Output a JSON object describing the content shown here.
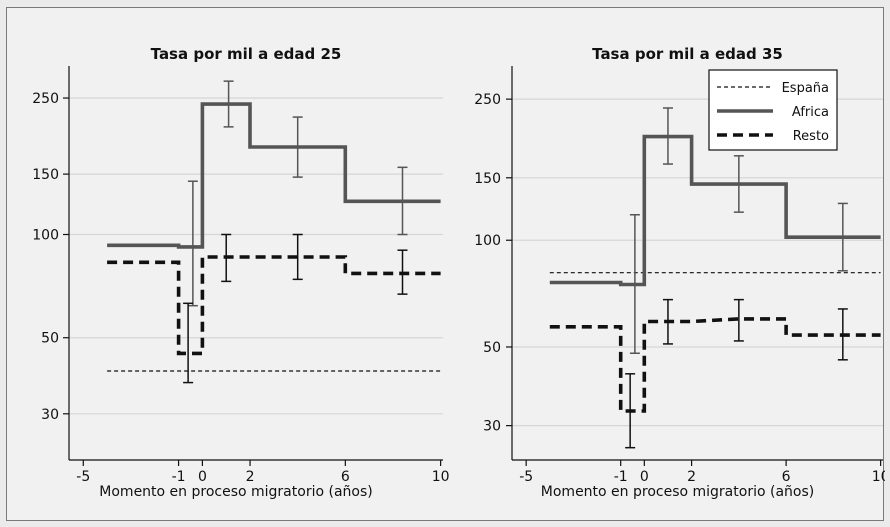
{
  "chart_data": [
    {
      "type": "line",
      "title": "Tasa por mil a edad 25",
      "xlabel": "Momento en proceso migratorio (años)",
      "ylabel": "",
      "y_scale": "log",
      "ylim": [
        22,
        310
      ],
      "xlim": [
        -5.6,
        10.1
      ],
      "x_ticks": [
        -5,
        -1,
        0,
        2,
        6,
        10
      ],
      "y_ticks": [
        30,
        50,
        100,
        150,
        250
      ],
      "grid": true,
      "legend": null,
      "series": [
        {
          "name": "España",
          "style": "dotted",
          "step": [
            [
              -4,
              40
            ],
            [
              10,
              40
            ]
          ],
          "errors": []
        },
        {
          "name": "Africa",
          "style": "solid",
          "step": [
            [
              -4,
              93
            ],
            [
              -1,
              93
            ],
            [
              -1,
              92
            ],
            [
              0,
              92
            ],
            [
              0,
              240
            ],
            [
              2,
              240
            ],
            [
              2,
              180
            ],
            [
              6,
              180
            ],
            [
              6,
              125
            ],
            [
              10,
              125
            ]
          ],
          "errors": [
            {
              "x": -0.4,
              "y": 92,
              "lo": 62,
              "hi": 143
            },
            {
              "x": 1.1,
              "y": 240,
              "lo": 206,
              "hi": 280
            },
            {
              "x": 4,
              "y": 180,
              "lo": 147,
              "hi": 220
            },
            {
              "x": 8.4,
              "y": 125,
              "lo": 100,
              "hi": 157
            }
          ]
        },
        {
          "name": "Resto",
          "style": "dashed",
          "step": [
            [
              -4,
              83
            ],
            [
              -1,
              83
            ],
            [
              -1,
              45
            ],
            [
              0,
              45
            ],
            [
              0,
              86
            ],
            [
              2,
              86
            ],
            [
              6,
              86
            ],
            [
              6,
              77
            ],
            [
              10,
              77
            ]
          ],
          "errors": [
            {
              "x": -0.6,
              "y": 45,
              "lo": 37,
              "hi": 63
            },
            {
              "x": 1,
              "y": 86,
              "lo": 73,
              "hi": 100
            },
            {
              "x": 4,
              "y": 86,
              "lo": 74,
              "hi": 100
            },
            {
              "x": 8.4,
              "y": 77,
              "lo": 67,
              "hi": 90
            }
          ]
        }
      ]
    },
    {
      "type": "line",
      "title": "Tasa por mil a edad 35",
      "xlabel": "Momento en proceso migratorio (años)",
      "ylabel": "",
      "y_scale": "log",
      "ylim": [
        24,
        310
      ],
      "xlim": [
        -5.6,
        10.1
      ],
      "x_ticks": [
        -5,
        -1,
        0,
        2,
        6,
        10
      ],
      "y_ticks": [
        30,
        50,
        100,
        150,
        250
      ],
      "grid": true,
      "legend": "top-right",
      "series": [
        {
          "name": "España",
          "style": "dotted",
          "step": [
            [
              -4,
              81
            ],
            [
              10,
              81
            ]
          ],
          "errors": []
        },
        {
          "name": "Africa",
          "style": "solid",
          "step": [
            [
              -4,
              76
            ],
            [
              -1,
              76
            ],
            [
              -1,
              75
            ],
            [
              0,
              75
            ],
            [
              0,
              196
            ],
            [
              2,
              196
            ],
            [
              2,
              144
            ],
            [
              6,
              144
            ],
            [
              6,
              102
            ],
            [
              10,
              102
            ]
          ],
          "errors": [
            {
              "x": -0.4,
              "y": 75,
              "lo": 48,
              "hi": 118
            },
            {
              "x": 1,
              "y": 196,
              "lo": 164,
              "hi": 236
            },
            {
              "x": 4,
              "y": 144,
              "lo": 120,
              "hi": 173
            },
            {
              "x": 8.4,
              "y": 102,
              "lo": 82,
              "hi": 127
            }
          ]
        },
        {
          "name": "Resto",
          "style": "dashed",
          "step": [
            [
              -4,
              57
            ],
            [
              -1,
              57
            ],
            [
              -1,
              33
            ],
            [
              0,
              33
            ],
            [
              0,
              59
            ],
            [
              2,
              59
            ],
            [
              4,
              60
            ],
            [
              6,
              60
            ],
            [
              6,
              54
            ],
            [
              10,
              54
            ]
          ],
          "errors": [
            {
              "x": -0.6,
              "y": 33,
              "lo": 26,
              "hi": 42
            },
            {
              "x": 1,
              "y": 59,
              "lo": 51,
              "hi": 68
            },
            {
              "x": 4,
              "y": 60,
              "lo": 52,
              "hi": 68
            },
            {
              "x": 8.4,
              "y": 54,
              "lo": 46,
              "hi": 64
            }
          ]
        }
      ]
    }
  ]
}
